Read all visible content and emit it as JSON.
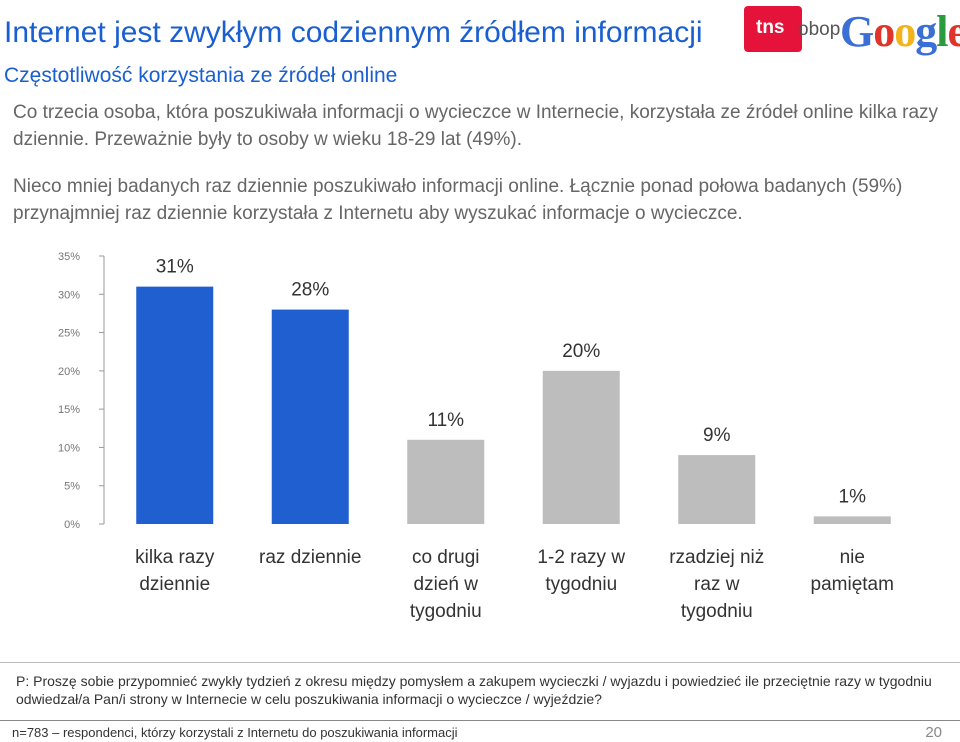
{
  "header": {
    "title": "Internet jest zwykłym codziennym źródłem informacji",
    "subtitle": "Częstotliwość korzystania ze źródeł online",
    "logo_tns": "tns",
    "logo_obop": "obop",
    "logo_google": [
      "G",
      "o",
      "o",
      "g",
      "l",
      "e"
    ],
    "logo_google_colors": [
      "#3b6fd6",
      "#e0342a",
      "#f2b41a",
      "#3b6fd6",
      "#2c9a3f",
      "#e0342a"
    ],
    "logo_tns_color": "#e5123a"
  },
  "paragraphs": {
    "p1": "Co trzecia osoba, która poszukiwała informacji o wycieczce w Internecie, korzystała ze źródeł online kilka razy dziennie. Przeważnie były to osoby w wieku 18-29 lat (49%).",
    "p2": "Nieco mniej badanych raz dziennie poszukiwało informacji online. Łącznie ponad połowa badanych (59%) przynajmniej raz dziennie korzystała z Internetu aby wyszukać informacje o wycieczce."
  },
  "chart_data": {
    "type": "bar",
    "categories": [
      [
        "kilka razy",
        "dziennie"
      ],
      [
        "raz dziennie"
      ],
      [
        "co drugi",
        "dzień w",
        "tygodniu"
      ],
      [
        "1-2 razy w",
        "tygodniu"
      ],
      [
        "rzadziej niż",
        "raz w",
        "tygodniu"
      ],
      [
        "nie",
        "pamiętam"
      ]
    ],
    "values": [
      31,
      28,
      11,
      20,
      9,
      1
    ],
    "data_labels": [
      "31%",
      "28%",
      "11%",
      "20%",
      "9%",
      "1%"
    ],
    "colors": [
      "#1f5fd0",
      "#1f5fd0",
      "#bdbdbd",
      "#bdbdbd",
      "#bdbdbd",
      "#bdbdbd"
    ],
    "yticks": [
      "0%",
      "5%",
      "10%",
      "15%",
      "20%",
      "25%",
      "30%",
      "35%"
    ],
    "ylim": [
      0,
      35
    ],
    "grid": false,
    "title": "",
    "xlabel": "",
    "ylabel": ""
  },
  "note": "P: Proszę sobie przypomnieć zwykły tydzień z okresu między pomysłem a zakupem wycieczki / wyjazdu i powiedzieć ile przeciętnie razy w tygodniu odwiedzał/a Pan/i strony w Internecie w celu poszukiwania informacji o wycieczce / wyjeździe?",
  "footer": {
    "sample": "n=783 – respondenci, którzy korzystali z Internetu do poszukiwania informacji",
    "page": "20"
  }
}
